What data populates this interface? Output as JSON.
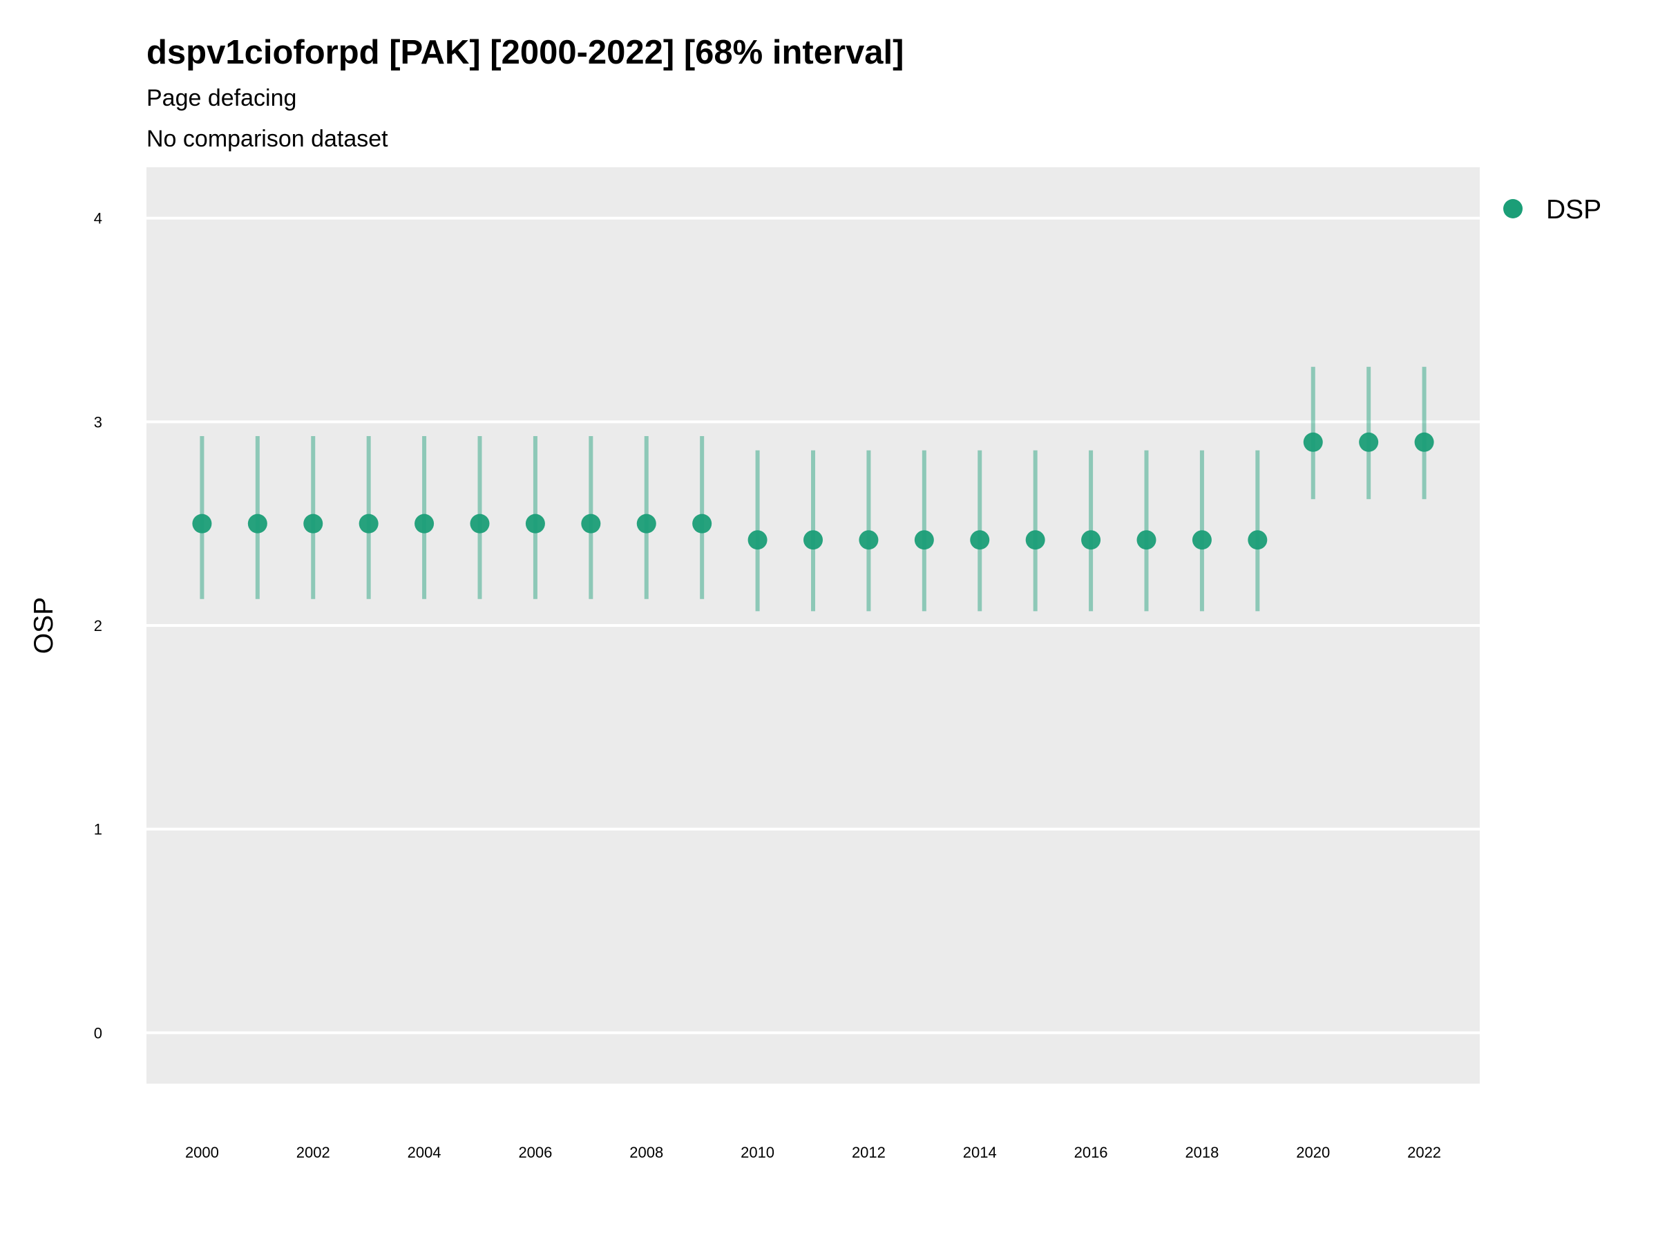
{
  "chart_data": {
    "type": "scatter",
    "title": "dspv1cioforpd [PAK] [2000-2022] [68% interval]",
    "subtitle": "Page defacing",
    "subtitle2": "No comparison dataset",
    "xlabel": "",
    "ylabel": "OSP",
    "ylim": [
      -0.25,
      4.25
    ],
    "xlim": [
      1999,
      2023
    ],
    "yticks": [
      0,
      1,
      2,
      3,
      4
    ],
    "xticks": [
      2000,
      2002,
      2004,
      2006,
      2008,
      2010,
      2012,
      2014,
      2016,
      2018,
      2020,
      2022
    ],
    "grid": true,
    "legend_position": "top-right",
    "series": [
      {
        "name": "DSP",
        "color": "#1b9e77",
        "x": [
          2000,
          2001,
          2002,
          2003,
          2004,
          2005,
          2006,
          2007,
          2008,
          2009,
          2010,
          2011,
          2012,
          2013,
          2014,
          2015,
          2016,
          2017,
          2018,
          2019,
          2020,
          2021,
          2022
        ],
        "y": [
          2.5,
          2.5,
          2.5,
          2.5,
          2.5,
          2.5,
          2.5,
          2.5,
          2.5,
          2.5,
          2.42,
          2.42,
          2.42,
          2.42,
          2.42,
          2.42,
          2.42,
          2.42,
          2.42,
          2.42,
          2.9,
          2.9,
          2.9
        ],
        "lower": [
          2.13,
          2.13,
          2.13,
          2.13,
          2.13,
          2.13,
          2.13,
          2.13,
          2.13,
          2.13,
          2.07,
          2.07,
          2.07,
          2.07,
          2.07,
          2.07,
          2.07,
          2.07,
          2.07,
          2.07,
          2.62,
          2.62,
          2.62
        ],
        "upper": [
          2.93,
          2.93,
          2.93,
          2.93,
          2.93,
          2.93,
          2.93,
          2.93,
          2.93,
          2.93,
          2.86,
          2.86,
          2.86,
          2.86,
          2.86,
          2.86,
          2.86,
          2.86,
          2.86,
          2.86,
          3.27,
          3.27,
          3.27
        ]
      }
    ]
  }
}
